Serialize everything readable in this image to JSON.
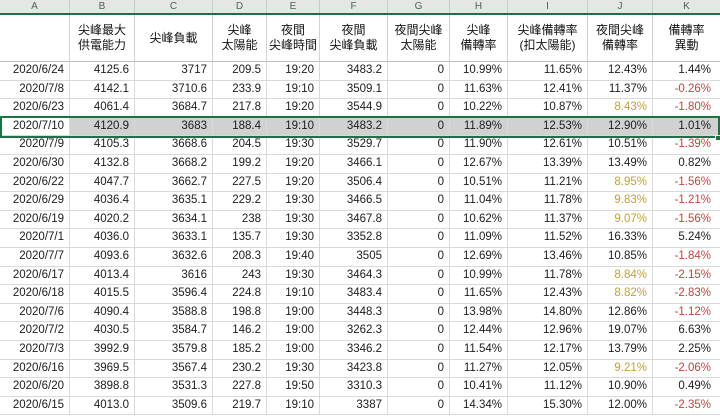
{
  "app": {
    "kind": "spreadsheet-grid"
  },
  "colors": {
    "selection_border": "#1e7145",
    "selection_fill": "#d1d1d1",
    "negative_red": "#bd453f",
    "warning_gold": "#bfa23c",
    "letter_strip_bg": "#e4e7e4",
    "gridline": "#d9d9d9"
  },
  "column_letters": [
    "A",
    "B",
    "C",
    "D",
    "E",
    "F",
    "G",
    "H",
    "I",
    "J",
    "K"
  ],
  "headers": [
    [
      ""
    ],
    [
      "尖峰最大",
      "供電能力"
    ],
    [
      "尖峰負載"
    ],
    [
      "尖峰",
      "太陽能"
    ],
    [
      "夜間",
      "尖峰時間"
    ],
    [
      "夜間",
      "尖峰負載"
    ],
    [
      "夜間尖峰",
      "太陽能"
    ],
    [
      "尖峰",
      "備轉率"
    ],
    [
      "尖峰備轉率",
      "(扣太陽能)"
    ],
    [
      "夜間尖峰",
      "備轉率"
    ],
    [
      "備轉率",
      "異動"
    ]
  ],
  "rows": [
    {
      "cells": [
        "2020/6/24",
        "4125.6",
        "3717",
        "209.5",
        "19:20",
        "3483.2",
        "0",
        "10.99%",
        "11.65%",
        "12.43%",
        "1.44%"
      ],
      "selected": false
    },
    {
      "cells": [
        "2020/7/8",
        "4142.1",
        "3710.6",
        "233.9",
        "19:10",
        "3509.1",
        "0",
        "11.63%",
        "12.41%",
        "11.37%",
        "-0.26%"
      ],
      "selected": false
    },
    {
      "cells": [
        "2020/6/23",
        "4061.4",
        "3684.7",
        "217.8",
        "19:20",
        "3544.9",
        "0",
        "10.22%",
        "10.87%",
        "8.43%",
        "-1.80%"
      ],
      "selected": false
    },
    {
      "cells": [
        "2020/7/10",
        "4120.9",
        "3683",
        "188.4",
        "19:10",
        "3483.2",
        "0",
        "11.89%",
        "12.53%",
        "12.90%",
        "1.01%"
      ],
      "selected": true
    },
    {
      "cells": [
        "2020/7/9",
        "4105.3",
        "3668.6",
        "204.5",
        "19:30",
        "3529.7",
        "0",
        "11.90%",
        "12.61%",
        "10.51%",
        "-1.39%"
      ],
      "selected": false
    },
    {
      "cells": [
        "2020/6/30",
        "4132.8",
        "3668.2",
        "199.2",
        "19:20",
        "3466.1",
        "0",
        "12.67%",
        "13.39%",
        "13.49%",
        "0.82%"
      ],
      "selected": false
    },
    {
      "cells": [
        "2020/6/22",
        "4047.7",
        "3662.7",
        "227.5",
        "19:20",
        "3506.4",
        "0",
        "10.51%",
        "11.21%",
        "8.95%",
        "-1.56%"
      ],
      "selected": false
    },
    {
      "cells": [
        "2020/6/29",
        "4036.4",
        "3635.1",
        "229.2",
        "19:30",
        "3466.5",
        "0",
        "11.04%",
        "11.78%",
        "9.83%",
        "-1.21%"
      ],
      "selected": false
    },
    {
      "cells": [
        "2020/6/19",
        "4020.2",
        "3634.1",
        "238",
        "19:30",
        "3467.8",
        "0",
        "10.62%",
        "11.37%",
        "9.07%",
        "-1.56%"
      ],
      "selected": false
    },
    {
      "cells": [
        "2020/7/1",
        "4036.0",
        "3633.1",
        "135.7",
        "19:30",
        "3352.8",
        "0",
        "11.09%",
        "11.52%",
        "16.33%",
        "5.24%"
      ],
      "selected": false
    },
    {
      "cells": [
        "2020/7/7",
        "4093.6",
        "3632.6",
        "208.3",
        "19:40",
        "3505",
        "0",
        "12.69%",
        "13.46%",
        "10.85%",
        "-1.84%"
      ],
      "selected": false
    },
    {
      "cells": [
        "2020/6/17",
        "4013.4",
        "3616",
        "243",
        "19:30",
        "3464.3",
        "0",
        "10.99%",
        "11.78%",
        "8.84%",
        "-2.15%"
      ],
      "selected": false
    },
    {
      "cells": [
        "2020/6/18",
        "4015.5",
        "3596.4",
        "224.8",
        "19:10",
        "3483.4",
        "0",
        "11.65%",
        "12.43%",
        "8.82%",
        "-2.83%"
      ],
      "selected": false
    },
    {
      "cells": [
        "2020/7/6",
        "4090.4",
        "3588.8",
        "198.8",
        "19:00",
        "3448.3",
        "0",
        "13.98%",
        "14.80%",
        "12.86%",
        "-1.12%"
      ],
      "selected": false
    },
    {
      "cells": [
        "2020/7/2",
        "4030.5",
        "3584.7",
        "146.2",
        "19:00",
        "3262.3",
        "0",
        "12.44%",
        "12.96%",
        "19.07%",
        "6.63%"
      ],
      "selected": false
    },
    {
      "cells": [
        "2020/7/3",
        "3992.9",
        "3579.8",
        "185.2",
        "19:00",
        "3346.2",
        "0",
        "11.54%",
        "12.17%",
        "13.79%",
        "2.25%"
      ],
      "selected": false
    },
    {
      "cells": [
        "2020/6/16",
        "3969.5",
        "3567.4",
        "230.2",
        "19:30",
        "3423.8",
        "0",
        "11.27%",
        "12.05%",
        "9.21%",
        "-2.06%"
      ],
      "selected": false
    },
    {
      "cells": [
        "2020/6/20",
        "3898.8",
        "3531.3",
        "227.8",
        "19:50",
        "3310.3",
        "0",
        "10.41%",
        "11.12%",
        "10.90%",
        "0.49%"
      ],
      "selected": false
    },
    {
      "cells": [
        "2020/6/15",
        "4013.0",
        "3509.6",
        "219.7",
        "19:10",
        "3387",
        "0",
        "14.34%",
        "15.30%",
        "12.00%",
        "-2.35%"
      ],
      "selected": false
    }
  ]
}
